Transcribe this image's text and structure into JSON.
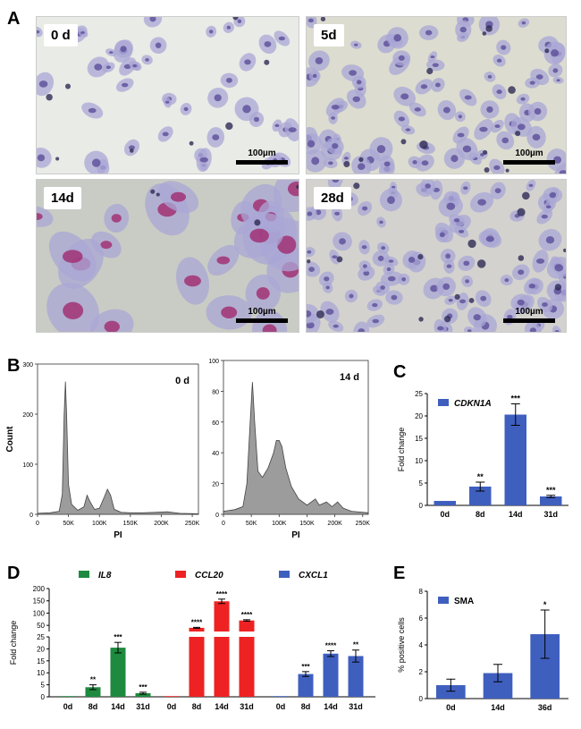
{
  "panels": {
    "a": "A",
    "b": "B",
    "c": "C",
    "d": "D",
    "e": "E"
  },
  "micrographs": [
    {
      "label": "0 d",
      "scale": "100µm"
    },
    {
      "label": "5d",
      "scale": "100µm"
    },
    {
      "label": "14d",
      "scale": "100µm"
    },
    {
      "label": "28d",
      "scale": "100µm"
    }
  ],
  "flow": [
    {
      "label": "0 d",
      "xlabel": "PI",
      "ylabel": "Count",
      "y_ticks": [
        "0",
        "100",
        "200",
        "300"
      ],
      "x_ticks": [
        "0",
        "50K",
        "100K",
        "150K",
        "200K",
        "250K"
      ],
      "ymax": 300,
      "xmax": 260000,
      "profile": [
        [
          0,
          2
        ],
        [
          20000,
          3
        ],
        [
          35000,
          6
        ],
        [
          40000,
          40
        ],
        [
          43000,
          200
        ],
        [
          45000,
          265
        ],
        [
          47000,
          200
        ],
        [
          50000,
          60
        ],
        [
          55000,
          20
        ],
        [
          65000,
          8
        ],
        [
          75000,
          15
        ],
        [
          80000,
          38
        ],
        [
          85000,
          25
        ],
        [
          92000,
          10
        ],
        [
          100000,
          12
        ],
        [
          108000,
          35
        ],
        [
          113000,
          50
        ],
        [
          118000,
          38
        ],
        [
          124000,
          10
        ],
        [
          135000,
          4
        ],
        [
          150000,
          3
        ],
        [
          170000,
          3
        ],
        [
          190000,
          4
        ],
        [
          210000,
          5
        ],
        [
          230000,
          2
        ],
        [
          260000,
          1
        ]
      ]
    },
    {
      "label": "14 d",
      "xlabel": "PI",
      "ylabel": "",
      "y_ticks": [
        "0",
        "20",
        "40",
        "60",
        "80",
        "100"
      ],
      "x_ticks": [
        "0",
        "50K",
        "100K",
        "150K",
        "200K",
        "250K"
      ],
      "ymax": 100,
      "xmax": 260000,
      "profile": [
        [
          0,
          2
        ],
        [
          20000,
          3
        ],
        [
          35000,
          5
        ],
        [
          42000,
          20
        ],
        [
          48000,
          60
        ],
        [
          52000,
          86
        ],
        [
          56000,
          60
        ],
        [
          62000,
          28
        ],
        [
          70000,
          24
        ],
        [
          80000,
          30
        ],
        [
          90000,
          40
        ],
        [
          95000,
          48
        ],
        [
          100000,
          48
        ],
        [
          105000,
          44
        ],
        [
          112000,
          30
        ],
        [
          122000,
          18
        ],
        [
          135000,
          10
        ],
        [
          150000,
          6
        ],
        [
          165000,
          10
        ],
        [
          172000,
          6
        ],
        [
          185000,
          8
        ],
        [
          195000,
          5
        ],
        [
          205000,
          8
        ],
        [
          215000,
          4
        ],
        [
          230000,
          2
        ],
        [
          260000,
          1
        ]
      ]
    }
  ],
  "chart_data": [
    {
      "type": "bar",
      "panel": "C",
      "series": [
        {
          "name": "CDKN1A",
          "values": [
            1,
            4.2,
            20.3,
            2.0
          ],
          "errors": [
            0,
            1.0,
            2.4,
            0.25
          ],
          "sig": [
            "",
            "**",
            "***",
            "***"
          ]
        }
      ],
      "categories": [
        "0d",
        "8d",
        "14d",
        "31d"
      ],
      "ylabel": "Fold change",
      "ylim": [
        0,
        25
      ],
      "y_ticks": [
        "0",
        "5",
        "10",
        "15",
        "20",
        "25"
      ],
      "color": "#3f5fbf"
    },
    {
      "type": "bar",
      "panel": "D",
      "ylabel": "Fold change",
      "categories": [
        "0d",
        "8d",
        "14d",
        "31d"
      ],
      "upper_ticks": [
        "50",
        "100",
        "150",
        "200"
      ],
      "lower_ticks": [
        "0",
        "5",
        "10",
        "15",
        "20",
        "25"
      ],
      "upper_range": [
        25,
        200
      ],
      "lower_range": [
        0,
        25
      ],
      "series": [
        {
          "name": "IL8",
          "color": "#1e8a3f",
          "values": [
            0.3,
            4,
            20.5,
            1.5
          ],
          "errors": [
            0,
            1,
            2.2,
            0.4
          ],
          "sig": [
            "",
            "**",
            "***",
            "***"
          ]
        },
        {
          "name": "CCL20",
          "color": "#ee2222",
          "values": [
            0.3,
            40,
            148,
            70
          ],
          "errors": [
            0,
            2,
            9,
            3
          ],
          "sig": [
            "",
            "****",
            "****",
            "****"
          ]
        },
        {
          "name": "CXCL1",
          "color": "#3f5fbf",
          "values": [
            0.3,
            9.5,
            18,
            17
          ],
          "errors": [
            0,
            1,
            1.2,
            2.5
          ],
          "sig": [
            "",
            "***",
            "****",
            "**"
          ]
        }
      ]
    },
    {
      "type": "bar",
      "panel": "E",
      "series": [
        {
          "name": "SMA",
          "values": [
            1.0,
            1.9,
            4.8
          ],
          "errors": [
            0.45,
            0.65,
            1.8
          ],
          "sig": [
            "",
            "",
            "*"
          ]
        }
      ],
      "categories": [
        "0d",
        "14d",
        "36d"
      ],
      "ylabel": "% positive cells",
      "ylim": [
        0,
        8
      ],
      "y_ticks": [
        "0",
        "2",
        "4",
        "6",
        "8"
      ],
      "color": "#3f5fbf"
    }
  ]
}
